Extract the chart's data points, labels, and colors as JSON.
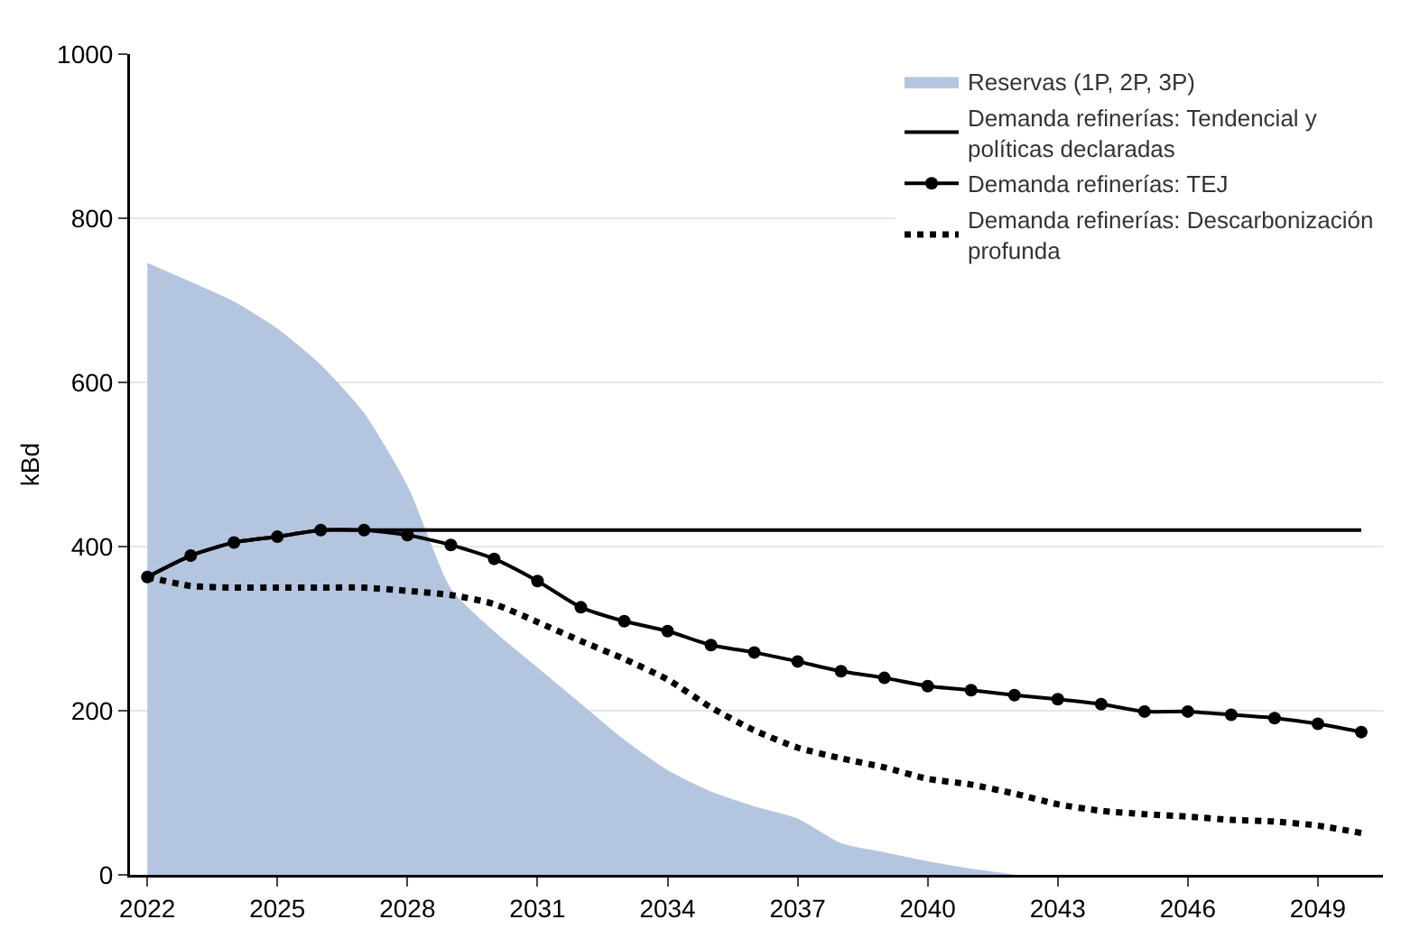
{
  "chart_data": {
    "type": "line",
    "ylabel": "kBd",
    "x": [
      2022,
      2023,
      2024,
      2025,
      2026,
      2027,
      2028,
      2029,
      2030,
      2031,
      2032,
      2033,
      2034,
      2035,
      2036,
      2037,
      2038,
      2039,
      2040,
      2041,
      2042,
      2043,
      2044,
      2045,
      2046,
      2047,
      2048,
      2049,
      2050
    ],
    "xlim": [
      2021.6,
      2050.5
    ],
    "xticks": [
      2022,
      2025,
      2028,
      2031,
      2034,
      2037,
      2040,
      2043,
      2046,
      2049
    ],
    "ylim": [
      0,
      1000
    ],
    "yticks": [
      0,
      200,
      400,
      600,
      800,
      1000
    ],
    "grid": "y",
    "legend": "top right",
    "series": [
      {
        "name": "Reservas (1P, 2P, 3P)",
        "type": "area",
        "color": "#b4c5e0",
        "values": [
          745,
          722,
          698,
          665,
          621,
          562,
          473,
          348,
          296,
          252,
          208,
          164,
          127,
          101,
          83,
          68,
          38,
          27,
          16,
          7,
          0,
          null,
          null,
          null,
          null,
          null,
          null,
          null,
          null
        ]
      },
      {
        "name": "Demanda refinerías: Tendencial y políticas declaradas",
        "color": "#000000",
        "line_style": "solid",
        "marker": "none",
        "values": [
          363,
          389,
          405,
          412,
          420,
          420,
          420,
          420,
          420,
          420,
          420,
          420,
          420,
          420,
          420,
          420,
          420,
          420,
          420,
          420,
          420,
          420,
          420,
          420,
          420,
          420,
          420,
          420,
          420
        ]
      },
      {
        "name": "Demanda refinerías: TEJ",
        "color": "#000000",
        "line_style": "solid",
        "marker": "circle",
        "values": [
          363,
          389,
          405,
          412,
          420,
          420,
          414,
          402,
          385,
          358,
          326,
          309,
          297,
          280,
          271,
          260,
          248,
          240,
          230,
          225,
          219,
          214,
          208,
          199,
          199,
          195,
          191,
          184,
          174
        ]
      },
      {
        "name": "Demanda refinerías: Descarbonización profunda",
        "color": "#000000",
        "line_style": "dotted",
        "marker": "none",
        "values": [
          363,
          352,
          350,
          350,
          350,
          350,
          346,
          341,
          330,
          308,
          285,
          263,
          238,
          204,
          176,
          155,
          142,
          131,
          117,
          110,
          99,
          86,
          78,
          74,
          71,
          67,
          65,
          60,
          51
        ]
      }
    ]
  }
}
